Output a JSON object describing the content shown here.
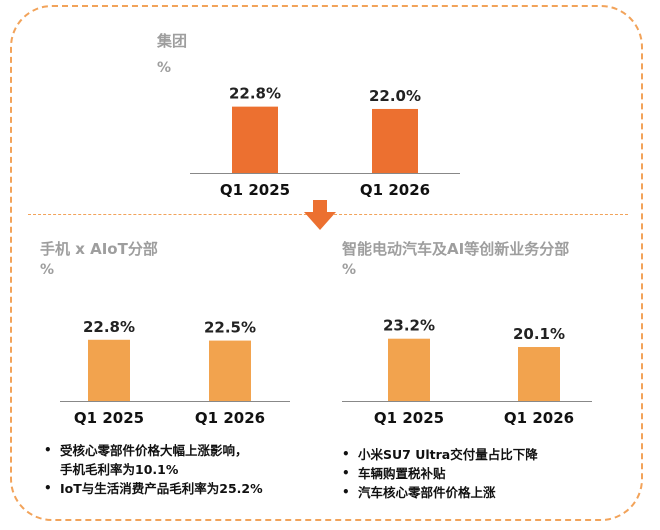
{
  "colors": {
    "group_bar": "#ec7030",
    "segment_bar": "#f2a34e",
    "border": "#f2a35a",
    "arrow": "#ec7030",
    "title_gray": "#9e9e9e"
  },
  "group": {
    "title": "集团",
    "unit": "%"
  },
  "phone": {
    "title": "手机 x AIoT分部",
    "unit": "%",
    "notes": [
      "受核心零部件价格大幅上涨影响，",
      "手机毛利率为10.1%",
      "IoT与生活消费产品毛利率为25.2%"
    ]
  },
  "ev": {
    "title": "智能电动汽车及AI等创新业务分部",
    "unit": "%",
    "notes": [
      "小米SU7 Ultra交付量占比下降",
      "车辆购置税补贴",
      "汽车核心零部件价格上涨"
    ]
  },
  "chart_data": [
    {
      "type": "bar",
      "categories": [
        "Q1 2025",
        "Q1 2026"
      ],
      "values": [
        22.8,
        22.0
      ],
      "labels": [
        "22.8%",
        "22.0%"
      ],
      "title": "集团",
      "ylabel": "%"
    },
    {
      "type": "bar",
      "categories": [
        "Q1 2025",
        "Q1 2026"
      ],
      "values": [
        22.8,
        22.5
      ],
      "labels": [
        "22.8%",
        "22.5%"
      ],
      "title": "手机 x AIoT分部",
      "ylabel": "%"
    },
    {
      "type": "bar",
      "categories": [
        "Q1 2025",
        "Q1 2026"
      ],
      "values": [
        23.2,
        20.1
      ],
      "labels": [
        "23.2%",
        "20.1%"
      ],
      "title": "智能电动汽车及AI等创新业务分部",
      "ylabel": "%"
    }
  ]
}
